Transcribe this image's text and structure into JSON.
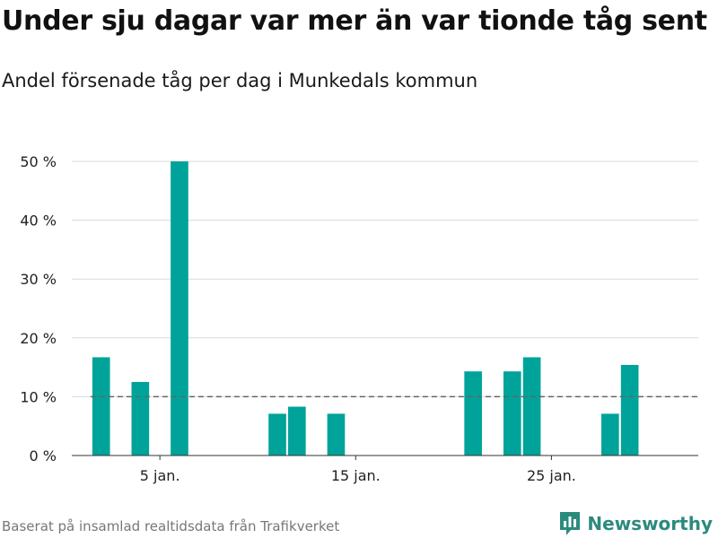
{
  "title": "Under sju dagar var mer än var tionde tåg sent",
  "subtitle": "Andel försenade tåg per dag i Munkedals kommun",
  "source": "Baserat på insamlad realtidsdata från Trafikverket",
  "brand": {
    "name": "Newsworthy",
    "icon": "newsworthy-logo-icon",
    "color": "#2b8a7e"
  },
  "colors": {
    "bar": "#00a399",
    "grid": "#d9d9d9",
    "reference": "#666666",
    "axis": "#333333"
  },
  "chart_data": {
    "type": "bar",
    "x_unit": "day of January",
    "x": [
      2,
      4,
      6,
      11,
      12,
      14,
      21,
      23,
      24,
      28,
      29
    ],
    "values": [
      16.7,
      12.5,
      50,
      7.1,
      8.3,
      7.1,
      14.3,
      14.3,
      16.7,
      7.1,
      15.4
    ],
    "xlim": [
      0.5,
      32.5
    ],
    "ylim": [
      0,
      50
    ],
    "y_ticks": [
      0,
      10,
      20,
      30,
      40,
      50
    ],
    "y_tick_labels": [
      "0 %",
      "10 %",
      "20 %",
      "30 %",
      "40 %",
      "50 %"
    ],
    "x_ticks": [
      5,
      15,
      25
    ],
    "x_tick_labels": [
      "5 jan.",
      "15 jan.",
      "25 jan."
    ],
    "reference_line": {
      "value": 10,
      "style": "dashed",
      "x_from": 2,
      "x_to": 32
    },
    "grid": true,
    "xlabel": "",
    "ylabel": ""
  }
}
